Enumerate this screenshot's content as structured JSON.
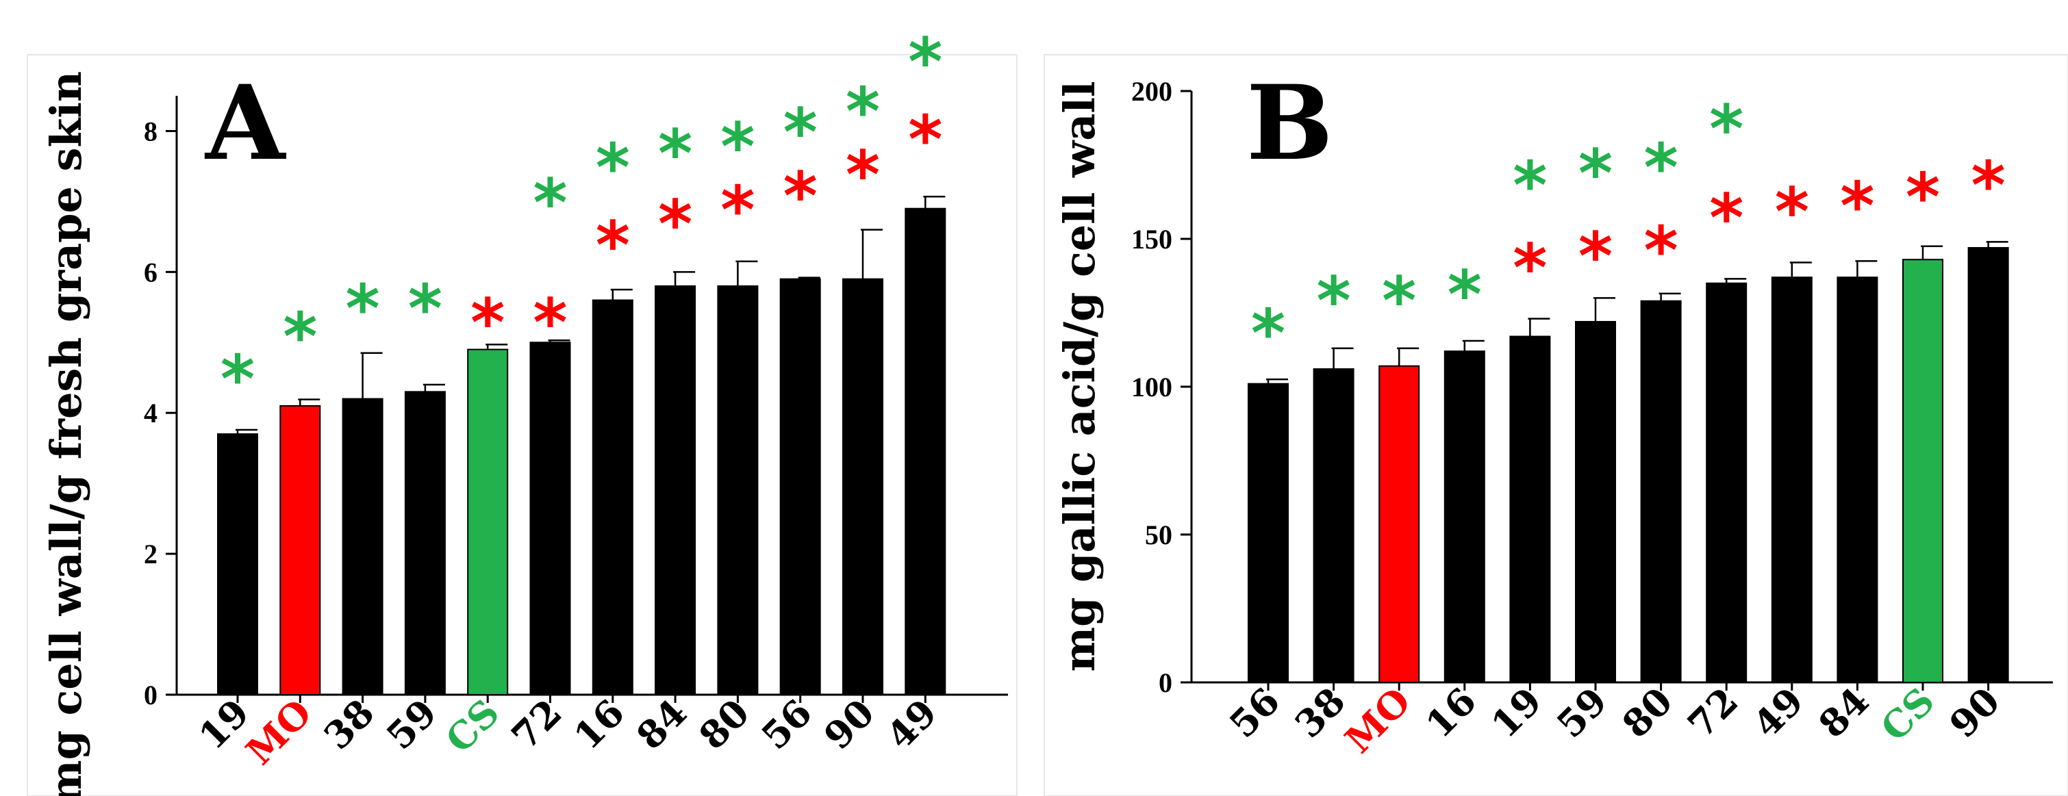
{
  "colors": {
    "default_bar": "#000000",
    "red": "#ff0000",
    "green": "#22b14c",
    "axis": "#000000",
    "frame": "#e6e6e6"
  },
  "chart_data": [
    {
      "type": "bar",
      "panel_label": "A",
      "ylabel": "mg cell wall/g fresh grape skin",
      "ylim": [
        0,
        8.5
      ],
      "yticks": [
        0,
        2,
        4,
        6,
        8
      ],
      "grid": false,
      "categories": [
        "19",
        "MO",
        "38",
        "59",
        "CS",
        "72",
        "16",
        "84",
        "80",
        "56",
        "90",
        "49"
      ],
      "values": [
        3.7,
        4.1,
        4.2,
        4.3,
        4.9,
        5.0,
        5.6,
        5.8,
        5.8,
        5.9,
        5.9,
        6.9
      ],
      "errors": [
        0.06,
        0.09,
        0.65,
        0.1,
        0.07,
        0.03,
        0.15,
        0.2,
        0.35,
        0.02,
        0.7,
        0.17
      ],
      "bar_colors": [
        "black",
        "red",
        "black",
        "black",
        "green",
        "black",
        "black",
        "black",
        "black",
        "black",
        "black",
        "black"
      ],
      "label_colors": [
        "black",
        "red",
        "black",
        "black",
        "green",
        "black",
        "black",
        "black",
        "black",
        "black",
        "black",
        "black"
      ],
      "significance": [
        {
          "symbol": "*",
          "color": "green",
          "y": [
            4.6,
            5.2,
            5.6,
            5.6,
            null,
            7.1,
            7.6,
            7.8,
            7.9,
            8.1,
            8.4,
            9.1
          ]
        },
        {
          "symbol": "*",
          "color": "red",
          "y": [
            null,
            null,
            null,
            null,
            5.4,
            5.4,
            6.5,
            6.8,
            7.0,
            7.2,
            7.5,
            8.0
          ]
        }
      ]
    },
    {
      "type": "bar",
      "panel_label": "B",
      "ylabel": "mg gallic acid/g cell wall",
      "ylim": [
        0,
        200
      ],
      "yticks": [
        0,
        50,
        100,
        150,
        200
      ],
      "grid": false,
      "categories": [
        "56",
        "38",
        "MO",
        "16",
        "19",
        "59",
        "80",
        "72",
        "49",
        "84",
        "CS",
        "90"
      ],
      "values": [
        101,
        106,
        107,
        112,
        117,
        122,
        129,
        135,
        137,
        137,
        143,
        147
      ],
      "errors": [
        1.5,
        7,
        6,
        3.5,
        6,
        8,
        2.5,
        1.5,
        5,
        5.5,
        4.5,
        2
      ],
      "bar_colors": [
        "black",
        "black",
        "red",
        "black",
        "black",
        "black",
        "black",
        "black",
        "black",
        "black",
        "green",
        "black"
      ],
      "label_colors": [
        "black",
        "black",
        "red",
        "black",
        "black",
        "black",
        "black",
        "black",
        "black",
        "black",
        "green",
        "black"
      ],
      "significance": [
        {
          "symbol": "*",
          "color": "green",
          "y": [
            121,
            132,
            132,
            134,
            171,
            175,
            177,
            190,
            null,
            null,
            null,
            null
          ]
        },
        {
          "symbol": "*",
          "color": "red",
          "y": [
            null,
            null,
            null,
            null,
            143,
            147,
            149,
            160,
            162,
            164,
            167,
            171
          ]
        }
      ]
    }
  ]
}
